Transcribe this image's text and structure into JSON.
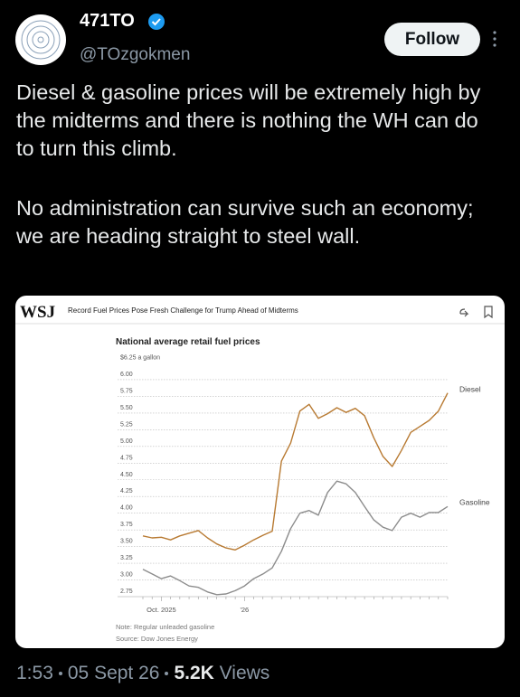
{
  "tweet": {
    "name": "471TO",
    "handle": "@TOzgokmen",
    "follow": "Follow",
    "paragraphs": [
      "Diesel & gasoline prices will be extremely high by the midterms and there is nothing the WH can do to turn this climb.",
      "No administration can survive such an economy; we are heading straight to steel wall."
    ],
    "time": "1:53",
    "date": "05 Sept 26",
    "views_count": "5.2K",
    "views_label": "Views"
  },
  "card": {
    "logo": "WSJ",
    "headline": "Record Fuel Prices Pose Fresh Challenge for Trump Ahead of Midterms"
  },
  "chart_data": {
    "type": "line",
    "title": "National average retail fuel prices",
    "note": "Note: Regular unleaded gasoline",
    "source": "Source: Dow Jones Energy",
    "categories": [
      null,
      null,
      "Oct. 2025",
      null,
      null,
      null,
      null,
      null,
      null,
      null,
      null,
      "'26",
      null,
      null,
      null,
      null,
      null,
      null,
      null,
      null,
      null,
      null,
      null,
      null,
      null,
      null,
      null,
      null,
      null,
      null,
      null,
      null,
      null,
      null
    ],
    "series": [
      {
        "name": "Diesel",
        "color": "#b87a32",
        "values": [
          3.66,
          3.63,
          3.64,
          3.6,
          3.66,
          3.7,
          3.74,
          3.63,
          3.54,
          3.48,
          3.45,
          3.52,
          3.6,
          3.67,
          3.73,
          4.78,
          5.05,
          5.53,
          5.63,
          5.42,
          5.49,
          5.58,
          5.51,
          5.57,
          5.46,
          5.13,
          4.85,
          4.7,
          4.94,
          5.21,
          5.3,
          5.39,
          5.53,
          5.8
        ]
      },
      {
        "name": "Gasoline",
        "color": "#8c8c8c",
        "values": [
          3.16,
          3.09,
          3.02,
          3.06,
          2.99,
          2.91,
          2.89,
          2.82,
          2.78,
          2.79,
          2.84,
          2.91,
          3.02,
          3.09,
          3.18,
          3.43,
          3.77,
          4.0,
          4.04,
          3.97,
          4.31,
          4.48,
          4.44,
          4.31,
          4.1,
          3.9,
          3.79,
          3.74,
          3.94,
          4.0,
          3.94,
          4.01,
          4.01,
          4.1
        ]
      }
    ],
    "ylim": [
      2.75,
      6.25
    ],
    "yticks": [
      2.75,
      {
        "value": 3,
        "label": "3.00"
      },
      3.25,
      {
        "value": 3.5,
        "label": "3.50"
      },
      3.75,
      {
        "value": 4,
        "label": "4.00"
      },
      4.25,
      {
        "value": 4.5,
        "label": "4.50"
      },
      4.75,
      {
        "value": 5,
        "label": "5.00"
      },
      5.25,
      {
        "value": 5.5,
        "label": "5.50"
      },
      5.75,
      {
        "value": 6,
        "label": "6.00"
      },
      {
        "value": 6.25,
        "label": "$6.25 a gallon"
      }
    ],
    "grid": true
  }
}
